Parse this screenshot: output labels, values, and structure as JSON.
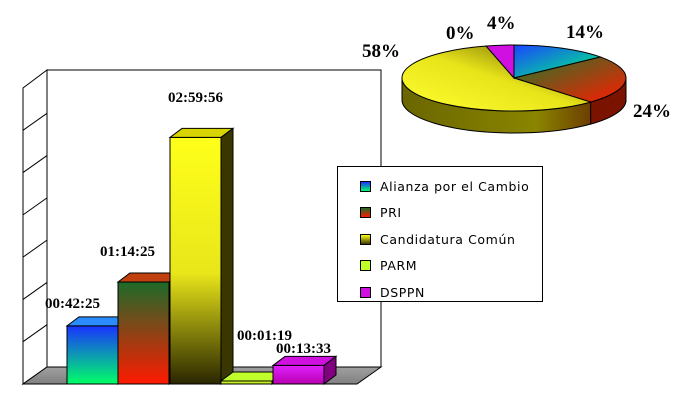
{
  "colors": {
    "blue_green": [
      "#1a33ff",
      "#00ff66"
    ],
    "orange_red": [
      "#ff0000",
      "#1d6b2a"
    ],
    "yellow_olive": [
      "#ffff1a",
      "#3d3800"
    ],
    "lime": "#c0ff2a",
    "magenta": "#d010e0"
  },
  "chart_data": [
    {
      "type": "bar",
      "categories": [
        "Alianza por el Cambio",
        "PRI",
        "Candidatura Común",
        "PARM",
        "DSPPN"
      ],
      "values_seconds": [
        2545,
        4465,
        10796,
        79,
        813
      ],
      "data_labels": [
        "00:42:25",
        "01:14:25",
        "02:59:56",
        "00:01:19",
        "00:13:33"
      ],
      "ylim_seconds": [
        0,
        12960
      ],
      "grid": true
    },
    {
      "type": "pie",
      "categories": [
        "Alianza por el Cambio",
        "PRI",
        "Candidatura Común",
        "PARM",
        "DSPPN"
      ],
      "values_percent": [
        14,
        24,
        58,
        0,
        4
      ],
      "data_labels": [
        "14%",
        "24%",
        "58%",
        "0%",
        "4%"
      ]
    }
  ],
  "legend": {
    "items": [
      {
        "label": "Alianza por el Cambio",
        "color": "#1a6cff"
      },
      {
        "label": "PRI",
        "color": "#c03a10"
      },
      {
        "label": "Candidatura Común",
        "color": "#7a7a00"
      },
      {
        "label": "PARM",
        "color": "#c0ff2a"
      },
      {
        "label": "DSPPN",
        "color": "#d010e0"
      }
    ]
  }
}
